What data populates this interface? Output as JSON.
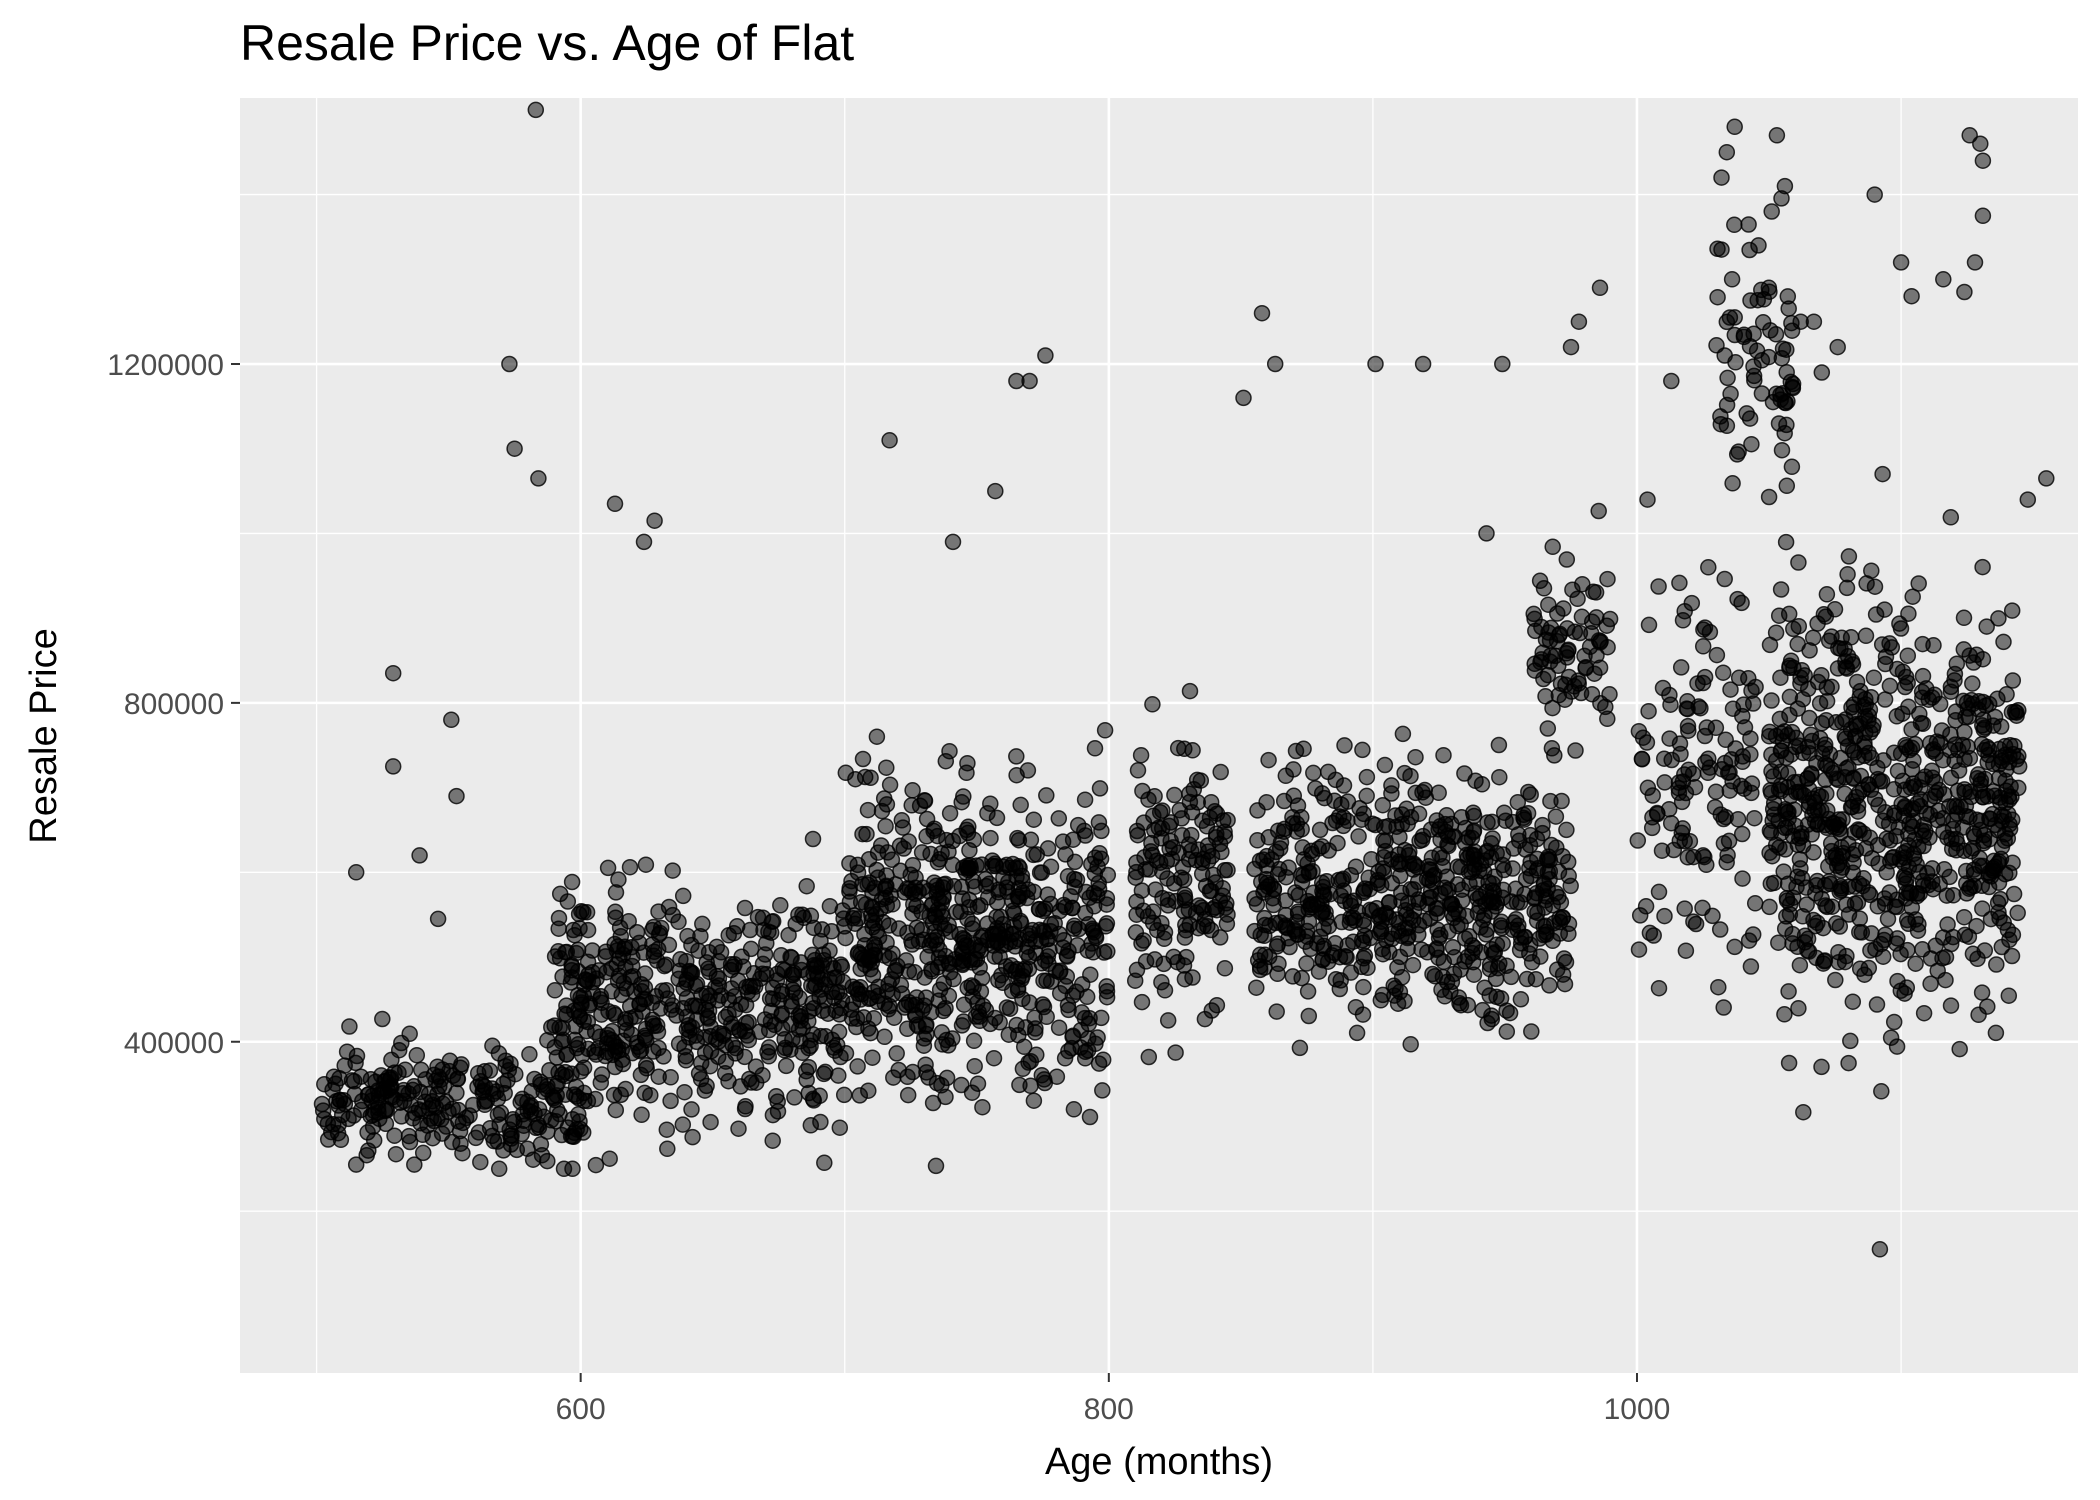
{
  "chart_data": {
    "type": "scatter",
    "title": "Resale Price vs. Age of Flat",
    "xlabel": "Age (months)",
    "ylabel": "Resale Price",
    "xlim": [
      471,
      1167
    ],
    "ylim": [
      9000,
      1514000
    ],
    "x_ticks": [
      600,
      800,
      1000
    ],
    "x_tick_labels": [
      "600",
      "800",
      "1000"
    ],
    "y_ticks": [
      400000,
      800000,
      1200000
    ],
    "y_tick_labels": [
      "400000",
      "800000",
      "1200000"
    ],
    "grid": true,
    "panel_background": "#ebebeb",
    "grid_color": "#ffffff",
    "point_color": "#000000",
    "point_opacity": 0.5,
    "clusters": [
      {
        "x_range": [
          502,
          600
        ],
        "y_center": 330000,
        "y_spread": 55000,
        "count": 260
      },
      {
        "x_range": [
          590,
          700
        ],
        "y_center": 440000,
        "y_spread": 110000,
        "count": 520
      },
      {
        "x_range": [
          700,
          800
        ],
        "y_center": 520000,
        "y_spread": 150000,
        "count": 620
      },
      {
        "x_range": [
          810,
          845
        ],
        "y_center": 600000,
        "y_spread": 130000,
        "count": 160
      },
      {
        "x_range": [
          855,
          975
        ],
        "y_center": 570000,
        "y_spread": 110000,
        "count": 620
      },
      {
        "x_range": [
          960,
          990
        ],
        "y_center": 870000,
        "y_spread": 90000,
        "count": 80
      },
      {
        "x_range": [
          1000,
          1045
        ],
        "y_center": 700000,
        "y_spread": 160000,
        "count": 140
      },
      {
        "x_range": [
          1030,
          1060
        ],
        "y_center": 1200000,
        "y_spread": 120000,
        "count": 70
      },
      {
        "x_range": [
          1050,
          1145
        ],
        "y_center": 680000,
        "y_spread": 190000,
        "count": 760
      }
    ],
    "points": [
      [
        583,
        1500000
      ],
      [
        573,
        1200000
      ],
      [
        575,
        1100000
      ],
      [
        584,
        1065000
      ],
      [
        529,
        835000
      ],
      [
        529,
        725000
      ],
      [
        551,
        780000
      ],
      [
        553,
        690000
      ],
      [
        539,
        620000
      ],
      [
        515,
        600000
      ],
      [
        546,
        545000
      ],
      [
        613,
        1035000
      ],
      [
        628,
        1015000
      ],
      [
        624,
        990000
      ],
      [
        717,
        1110000
      ],
      [
        741,
        990000
      ],
      [
        776,
        1210000
      ],
      [
        765,
        1180000
      ],
      [
        770,
        1180000
      ],
      [
        757,
        1050000
      ],
      [
        858,
        1260000
      ],
      [
        863,
        1200000
      ],
      [
        851,
        1160000
      ],
      [
        901,
        1200000
      ],
      [
        919,
        1200000
      ],
      [
        949,
        1200000
      ],
      [
        978,
        1250000
      ],
      [
        986,
        1290000
      ],
      [
        975,
        1220000
      ],
      [
        1037,
        1480000
      ],
      [
        1034,
        1450000
      ],
      [
        1032,
        1420000
      ],
      [
        1053,
        1470000
      ],
      [
        1056,
        1410000
      ],
      [
        1051,
        1380000
      ],
      [
        1032,
        1335000
      ],
      [
        1036,
        1300000
      ],
      [
        1046,
        1340000
      ],
      [
        1037,
        1255000
      ],
      [
        1043,
        1275000
      ],
      [
        1090,
        1400000
      ],
      [
        1126,
        1470000
      ],
      [
        1130,
        1460000
      ],
      [
        1131,
        1440000
      ],
      [
        1131,
        1375000
      ],
      [
        1128,
        1320000
      ],
      [
        1124,
        1285000
      ],
      [
        1116,
        1300000
      ],
      [
        1100,
        1320000
      ],
      [
        1104,
        1280000
      ],
      [
        1076,
        1220000
      ],
      [
        1067,
        1250000
      ],
      [
        1062,
        1250000
      ],
      [
        1155,
        1065000
      ],
      [
        1148,
        1040000
      ],
      [
        1092,
        155000
      ],
      [
        515,
        255000
      ],
      [
        537,
        255000
      ],
      [
        562,
        258000
      ],
      [
        611,
        262000
      ],
      [
        1004,
        1040000
      ],
      [
        1013,
        1180000
      ],
      [
        1027,
        960000
      ],
      [
        1070,
        1190000
      ],
      [
        1093,
        1070000
      ],
      [
        943,
        1000000
      ]
    ]
  }
}
